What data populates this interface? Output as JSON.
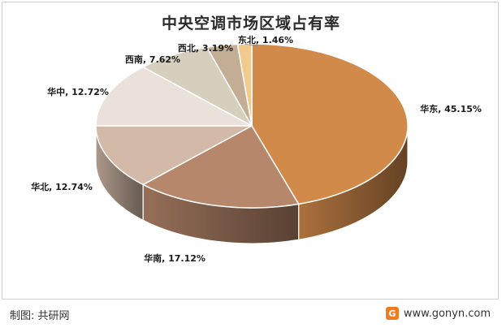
{
  "title": "中央空调市场区域占有率",
  "source": "制图: 共研网",
  "watermark": "www.gonyn.com",
  "logo_letter": "G",
  "chart_data": {
    "type": "pie",
    "title": "中央空调市场区域占有率",
    "unit": "%",
    "slices": [
      {
        "label": "华东",
        "value": 45.15,
        "display": "华东, 45.15%",
        "color": "#D28A4B"
      },
      {
        "label": "华南",
        "value": 17.12,
        "display": "华南, 17.12%",
        "color": "#B7876B"
      },
      {
        "label": "华北",
        "value": 12.74,
        "display": "华北, 12.74%",
        "color": "#D3B9A8"
      },
      {
        "label": "华中",
        "value": 12.72,
        "display": "华中, 12.72%",
        "color": "#EAE2DA"
      },
      {
        "label": "西南",
        "value": 7.62,
        "display": "西南, 7.62%",
        "color": "#D6CFBE"
      },
      {
        "label": "西北",
        "value": 3.19,
        "display": "西北, 3.19%",
        "color": "#C3AE95"
      },
      {
        "label": "东北",
        "value": 1.46,
        "display": "东北, 1.46%",
        "color": "#F1CB8E"
      }
    ]
  }
}
